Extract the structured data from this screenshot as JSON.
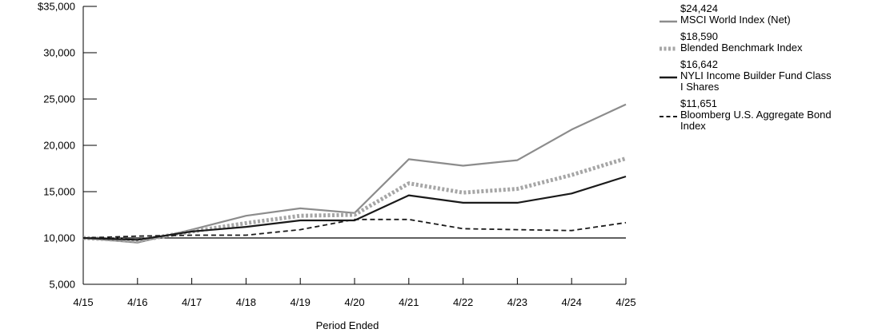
{
  "chart_data": {
    "type": "line",
    "xlabel": "Period Ended",
    "ylabel": "",
    "categories": [
      "4/15",
      "4/16",
      "4/17",
      "4/18",
      "4/19",
      "4/20",
      "4/21",
      "4/22",
      "4/23",
      "4/24",
      "4/25"
    ],
    "ylim": [
      5000,
      35000
    ],
    "yticks": [
      {
        "value": 35000,
        "label": "$35,000"
      },
      {
        "value": 30000,
        "label": "30,000"
      },
      {
        "value": 25000,
        "label": "25,000"
      },
      {
        "value": 20000,
        "label": "20,000"
      },
      {
        "value": 15000,
        "label": "15,000"
      },
      {
        "value": 10000,
        "label": "10,000"
      },
      {
        "value": 5000,
        "label": "5,000"
      }
    ],
    "reference_line": 10000,
    "legend_position": "right",
    "series": [
      {
        "name": "MSCI World Index (Net)",
        "end_label": "$24,424",
        "color": "#8c8c8c",
        "style": "solid",
        "values": [
          10000,
          9500,
          10900,
          12400,
          13200,
          12700,
          18500,
          17800,
          18400,
          21700,
          24424
        ]
      },
      {
        "name": "Blended Benchmark Index",
        "end_label": "$18,590",
        "color": "#a6a6a6",
        "style": "dotted",
        "values": [
          10000,
          9700,
          10700,
          11600,
          12400,
          12500,
          15900,
          14900,
          15300,
          16800,
          18590
        ]
      },
      {
        "name": "NYLI Income Builder Fund Class I Shares",
        "end_label": "$16,642",
        "color": "#1a1a1a",
        "style": "solid",
        "values": [
          10000,
          9800,
          10700,
          11200,
          11900,
          11900,
          14600,
          13800,
          13800,
          14800,
          16642
        ]
      },
      {
        "name": "Bloomberg  U.S. Aggregate Bond Index",
        "end_label": "$11,651",
        "color": "#1a1a1a",
        "style": "dashed",
        "values": [
          10000,
          10200,
          10300,
          10300,
          10900,
          12000,
          12000,
          11000,
          10900,
          10800,
          11651
        ]
      }
    ]
  }
}
